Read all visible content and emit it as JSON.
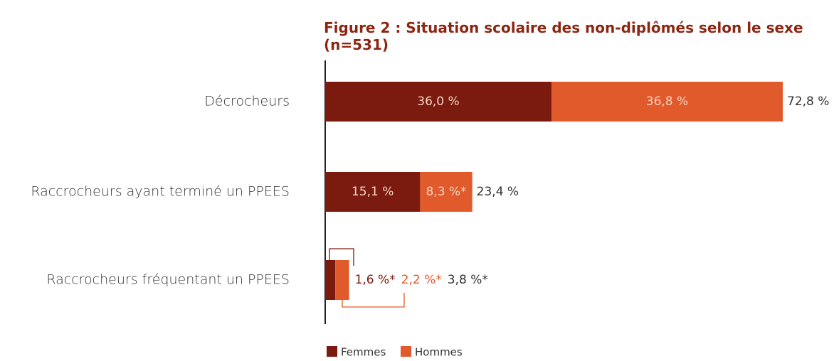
{
  "chart_data": {
    "type": "stacked-bar-horizontal",
    "title": "Figure 2 : Situation scolaire des non-diplômés selon le sexe",
    "subtitle": "(n=531)",
    "categories": [
      "Décrocheurs",
      "Raccrocheurs ayant terminé un PPEES",
      "Raccrocheurs fréquentant un PPEES"
    ],
    "series": [
      {
        "name": "Femmes",
        "color": "#7b1a0e",
        "values": [
          36.0,
          15.1,
          1.6
        ],
        "value_labels": [
          "36,0 %",
          "15,1 %",
          "1,6 %*"
        ]
      },
      {
        "name": "Hommes",
        "color": "#e05a2b",
        "values": [
          36.8,
          8.3,
          2.2
        ],
        "value_labels": [
          "36,8 %",
          "8,3 %*",
          "2,2 %*"
        ]
      }
    ],
    "totals": [
      72.8,
      23.4,
      3.8
    ],
    "total_labels": [
      "72,8 %",
      "23,4 %",
      "3,8 %*"
    ],
    "legend": "bottom"
  }
}
